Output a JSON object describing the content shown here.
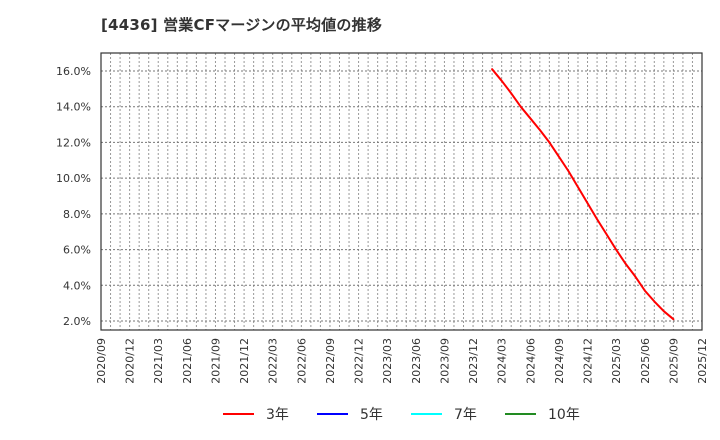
{
  "title": "[4436]  営業CFマージンの平均値の推移",
  "chart_data": {
    "type": "line",
    "title": "[4436]  営業CFマージンの平均値の推移",
    "xlabel": "",
    "ylabel": "",
    "x_tick_labels": [
      "2020/09",
      "2020/12",
      "2021/03",
      "2021/06",
      "2021/09",
      "2021/12",
      "2022/03",
      "2022/06",
      "2022/09",
      "2022/12",
      "2023/03",
      "2023/06",
      "2023/09",
      "2023/12",
      "2024/03",
      "2024/06",
      "2024/09",
      "2024/12",
      "2025/03",
      "2025/06",
      "2025/09",
      "2025/12"
    ],
    "y_tick_labels": [
      "2.0%",
      "4.0%",
      "6.0%",
      "8.0%",
      "10.0%",
      "12.0%",
      "14.0%",
      "16.0%"
    ],
    "y_ticks": [
      2,
      4,
      6,
      8,
      10,
      12,
      14,
      16
    ],
    "ylim": [
      1.5,
      17.0
    ],
    "x_range_months": [
      "2020/09",
      "2025/12"
    ],
    "grid": true,
    "legend_position": "bottom",
    "series": [
      {
        "name": "3年",
        "color": "#ff0000",
        "x": [
          "2024/02",
          "2024/03",
          "2024/04",
          "2024/05",
          "2024/06",
          "2024/07",
          "2024/08",
          "2024/09",
          "2024/10",
          "2024/11",
          "2024/12",
          "2025/01",
          "2025/02",
          "2025/03",
          "2025/04",
          "2025/05",
          "2025/06",
          "2025/07",
          "2025/08",
          "2025/09"
        ],
        "values": [
          16.1,
          15.45,
          14.75,
          14.0,
          13.35,
          12.7,
          12.0,
          11.2,
          10.4,
          9.5,
          8.6,
          7.7,
          6.85,
          6.0,
          5.2,
          4.5,
          3.7,
          3.1,
          2.55,
          2.1
        ]
      },
      {
        "name": "5年",
        "color": "#0000ff",
        "x": [],
        "values": []
      },
      {
        "name": "7年",
        "color": "#00ffff",
        "x": [],
        "values": []
      },
      {
        "name": "10年",
        "color": "#228b22",
        "x": [],
        "values": []
      }
    ]
  }
}
